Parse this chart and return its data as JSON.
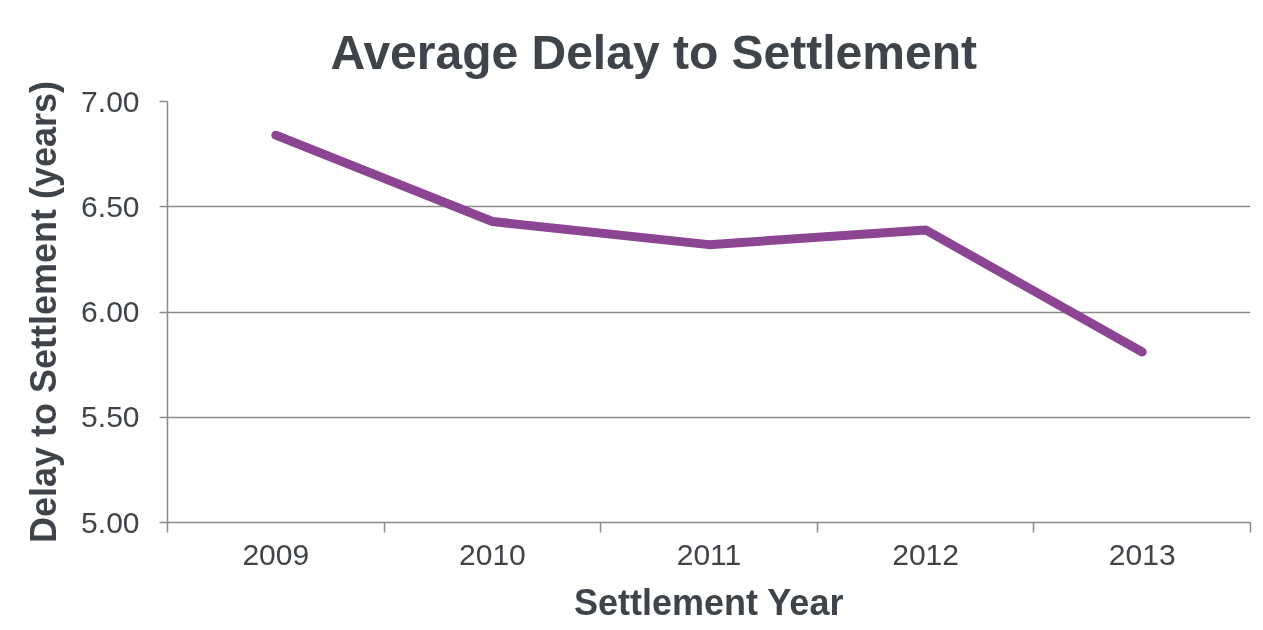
{
  "chart_data": {
    "type": "line",
    "title": "Average Delay to Settlement",
    "xlabel": "Settlement Year",
    "ylabel": "Delay to Settlement (years)",
    "categories": [
      "2009",
      "2010",
      "2011",
      "2012",
      "2013"
    ],
    "series": [
      {
        "color": "#8c4593",
        "values": [
          6.84,
          6.43,
          6.32,
          6.39,
          5.81
        ]
      }
    ],
    "ylim": [
      5,
      7
    ],
    "yticks": [
      {
        "value": 5,
        "label": "5.00"
      },
      {
        "value": 5.5,
        "label": "5.50"
      },
      {
        "value": 6,
        "label": "6.00"
      },
      {
        "value": 6.5,
        "label": "6.50"
      },
      {
        "value": 7,
        "label": "7.00"
      }
    ],
    "grid": "y",
    "line_style": "solid"
  }
}
